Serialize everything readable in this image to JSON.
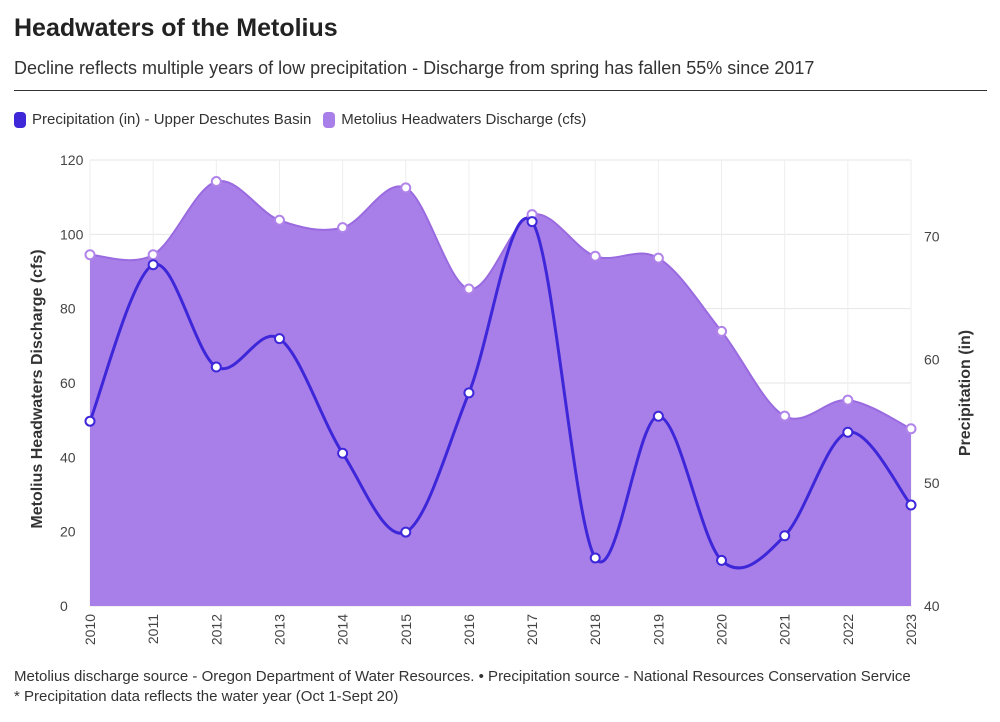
{
  "header": {
    "title": "Headwaters of the Metolius",
    "subtitle": "Decline reflects multiple years of low precipitation - Discharge from spring has fallen 55% since 2017"
  },
  "footer": {
    "source_line": "Metolius discharge source - Oregon Department of Water Resources. • Precipitation source - National Resources Conservation Service",
    "note_line": "* Precipitation data reflects the water year (Oct 1-Sept 20)"
  },
  "chart_data": {
    "type": "area",
    "categories": [
      "2010",
      "2011",
      "2012",
      "2013",
      "2014",
      "2015",
      "2016",
      "2017",
      "2018",
      "2019",
      "2020",
      "2021",
      "2022",
      "2023"
    ],
    "series": [
      {
        "name": "Precipitation (in) - Upper Deschutes Basin",
        "type": "line",
        "axis": "right",
        "color": "#3d27d9",
        "values": [
          55.0,
          67.7,
          59.4,
          61.7,
          52.4,
          46.0,
          57.3,
          71.2,
          43.9,
          55.4,
          43.7,
          45.7,
          54.1,
          48.2
        ]
      },
      {
        "name": "Metolius Headwaters Discharge (cfs)",
        "type": "area",
        "axis": "left",
        "color": "#a87fe8",
        "values": [
          94.5,
          94.5,
          114.2,
          103.8,
          101.8,
          112.5,
          85.3,
          105.3,
          94.1,
          93.6,
          73.9,
          51.1,
          55.4,
          47.7
        ]
      }
    ],
    "y_left": {
      "label": "Metolius Headwaters Discharge (cfs)",
      "range": [
        0,
        120
      ],
      "ticks": [
        0,
        20,
        40,
        60,
        80,
        100,
        120
      ]
    },
    "y_right": {
      "label": "Precipitation (in)",
      "range": [
        40,
        76.2
      ],
      "ticks": [
        40,
        50,
        60,
        70
      ]
    },
    "grid": true,
    "legend": "top-left"
  }
}
